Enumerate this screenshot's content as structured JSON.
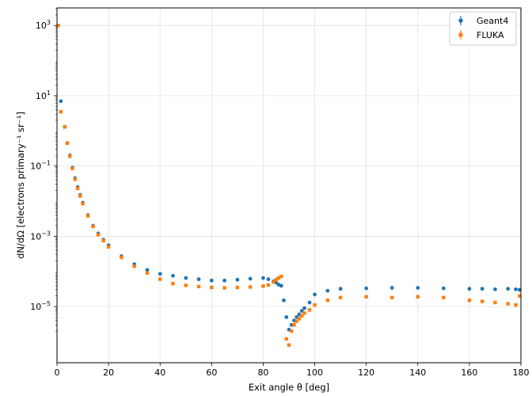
{
  "chart_data": {
    "type": "scatter",
    "xlabel": "Exit angle θ [deg]",
    "ylabel": "dN/dΩ [electrons primary⁻¹ sr⁻¹]",
    "xlim": [
      0,
      180
    ],
    "ylim_log10": [
      -6.6,
      3.5
    ],
    "yscale": "log",
    "x_ticks": [
      0,
      20,
      40,
      60,
      80,
      100,
      120,
      140,
      160,
      180
    ],
    "y_ticks_exp": [
      -5,
      -3,
      -1,
      1,
      3
    ],
    "grid": true,
    "legend": {
      "position": "top-right"
    },
    "series": [
      {
        "name": "Geant4",
        "color": "#1f77b4",
        "marker": "circle",
        "x": [
          1.5,
          3,
          4,
          5,
          6,
          7,
          8,
          9,
          10,
          12,
          14,
          16,
          18,
          20,
          25,
          30,
          35,
          40,
          45,
          50,
          55,
          60,
          65,
          70,
          75,
          80,
          82,
          84,
          85,
          86,
          87,
          88,
          89,
          90,
          91,
          92,
          93,
          94,
          95,
          96,
          98,
          100,
          105,
          110,
          120,
          130,
          140,
          150,
          160,
          165,
          170,
          175,
          178,
          179.5
        ],
        "y": [
          7.0,
          1.3,
          0.45,
          0.2,
          0.09,
          0.045,
          0.025,
          0.015,
          0.009,
          0.004,
          0.002,
          0.0012,
          0.0008,
          0.00055,
          0.00027,
          0.00016,
          0.00011,
          8.5e-05,
          7.5e-05,
          6.5e-05,
          6e-05,
          5.5e-05,
          5.5e-05,
          5.8e-05,
          6.2e-05,
          6.5e-05,
          6e-05,
          5.2e-05,
          4.8e-05,
          4.2e-05,
          3.9e-05,
          1.5e-05,
          5e-06,
          2.2e-06,
          3e-06,
          4e-06,
          5e-06,
          6e-06,
          7.5e-06,
          9e-06,
          1.3e-05,
          2.2e-05,
          2.8e-05,
          3.2e-05,
          3.3e-05,
          3.4e-05,
          3.4e-05,
          3.3e-05,
          3.2e-05,
          3.2e-05,
          3.1e-05,
          3.2e-05,
          3.1e-05,
          3e-05
        ]
      },
      {
        "name": "FLUKA",
        "color": "#ff7f0e",
        "marker": "square",
        "x": [
          0.5,
          1.5,
          3,
          4,
          5,
          6,
          7,
          8,
          9,
          10,
          12,
          14,
          16,
          18,
          20,
          25,
          30,
          35,
          40,
          45,
          50,
          55,
          60,
          65,
          70,
          75,
          80,
          82,
          84,
          85,
          86,
          87,
          89,
          90,
          91,
          92,
          93,
          94,
          95,
          96,
          98,
          100,
          105,
          110,
          120,
          130,
          140,
          150,
          160,
          165,
          170,
          175,
          178,
          179.5
        ],
        "y": [
          1000,
          3.5,
          1.3,
          0.45,
          0.19,
          0.085,
          0.042,
          0.023,
          0.014,
          0.0085,
          0.0038,
          0.0019,
          0.0011,
          0.00075,
          0.0005,
          0.00025,
          0.00014,
          9e-05,
          6e-05,
          4.5e-05,
          4e-05,
          3.7e-05,
          3.5e-05,
          3.4e-05,
          3.5e-05,
          3.6e-05,
          3.8e-05,
          4.1e-05,
          5e-05,
          5.8e-05,
          6.5e-05,
          7.2e-05,
          1.2e-06,
          8e-07,
          2e-06,
          3e-06,
          3.8e-06,
          4.5e-06,
          5.5e-06,
          6.5e-06,
          8e-06,
          1.1e-05,
          1.5e-05,
          1.8e-05,
          1.9e-05,
          1.8e-05,
          1.9e-05,
          1.8e-05,
          1.5e-05,
          1.4e-05,
          1.3e-05,
          1.2e-05,
          1.1e-05,
          2e-05
        ]
      }
    ]
  }
}
